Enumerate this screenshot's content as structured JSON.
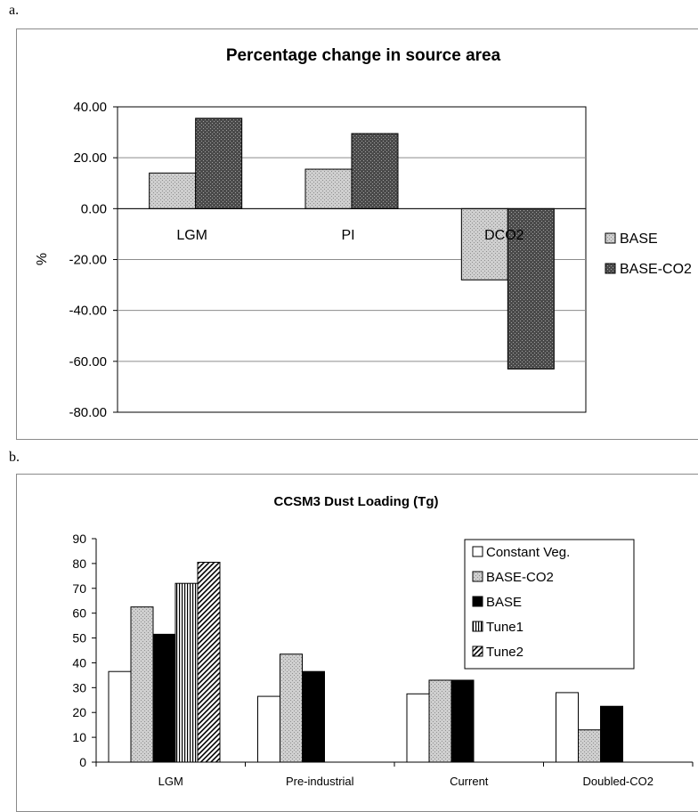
{
  "panels": [
    {
      "letter": "a."
    },
    {
      "letter": "b."
    }
  ],
  "chart_data": [
    {
      "type": "bar",
      "title": "Percentage change in source area",
      "ylabel": "%",
      "xlabel": "",
      "ylim": [
        -80,
        40
      ],
      "ytick_step": 20,
      "ytick_labels": [
        "40.00",
        "20.00",
        "0.00",
        "-20.00",
        "-40.00",
        "-60.00",
        "-80.00"
      ],
      "categories": [
        "LGM",
        "PI",
        "DCO2"
      ],
      "grid": true,
      "legend": "right",
      "series": [
        {
          "name": "BASE",
          "values": [
            14,
            15.5,
            -28
          ],
          "color": "#c8c8c8",
          "pattern": "dots-light"
        },
        {
          "name": "BASE-CO2",
          "values": [
            35.5,
            29.5,
            -63
          ],
          "color": "#4a4a4a",
          "pattern": "dots-dark"
        }
      ]
    },
    {
      "type": "bar",
      "title": "CCSM3 Dust Loading (Tg)",
      "xlabel": "",
      "ylabel": "",
      "ylim": [
        0,
        90
      ],
      "ytick_step": 10,
      "ytick_labels": [
        "90",
        "80",
        "70",
        "60",
        "50",
        "40",
        "30",
        "20",
        "10",
        "0"
      ],
      "categories": [
        "LGM",
        "Pre-industrial",
        "Current",
        "Doubled-CO2"
      ],
      "grid": false,
      "legend": "top-right",
      "series": [
        {
          "name": "Constant Veg.",
          "values": [
            36.5,
            26.5,
            27.5,
            28
          ],
          "color": "#ffffff",
          "pattern": "none"
        },
        {
          "name": "BASE-CO2",
          "values": [
            62.5,
            43.5,
            33,
            13
          ],
          "color": "#c0c0c0",
          "pattern": "dots-light"
        },
        {
          "name": "BASE",
          "values": [
            51.5,
            36.5,
            33,
            22.5
          ],
          "color": "#000000",
          "pattern": "none"
        },
        {
          "name": "Tune1",
          "values": [
            72,
            null,
            null,
            null
          ],
          "color": "#ffffff",
          "pattern": "vlines"
        },
        {
          "name": "Tune2",
          "values": [
            80.5,
            null,
            null,
            null
          ],
          "color": "#ffffff",
          "pattern": "diag"
        }
      ]
    }
  ]
}
